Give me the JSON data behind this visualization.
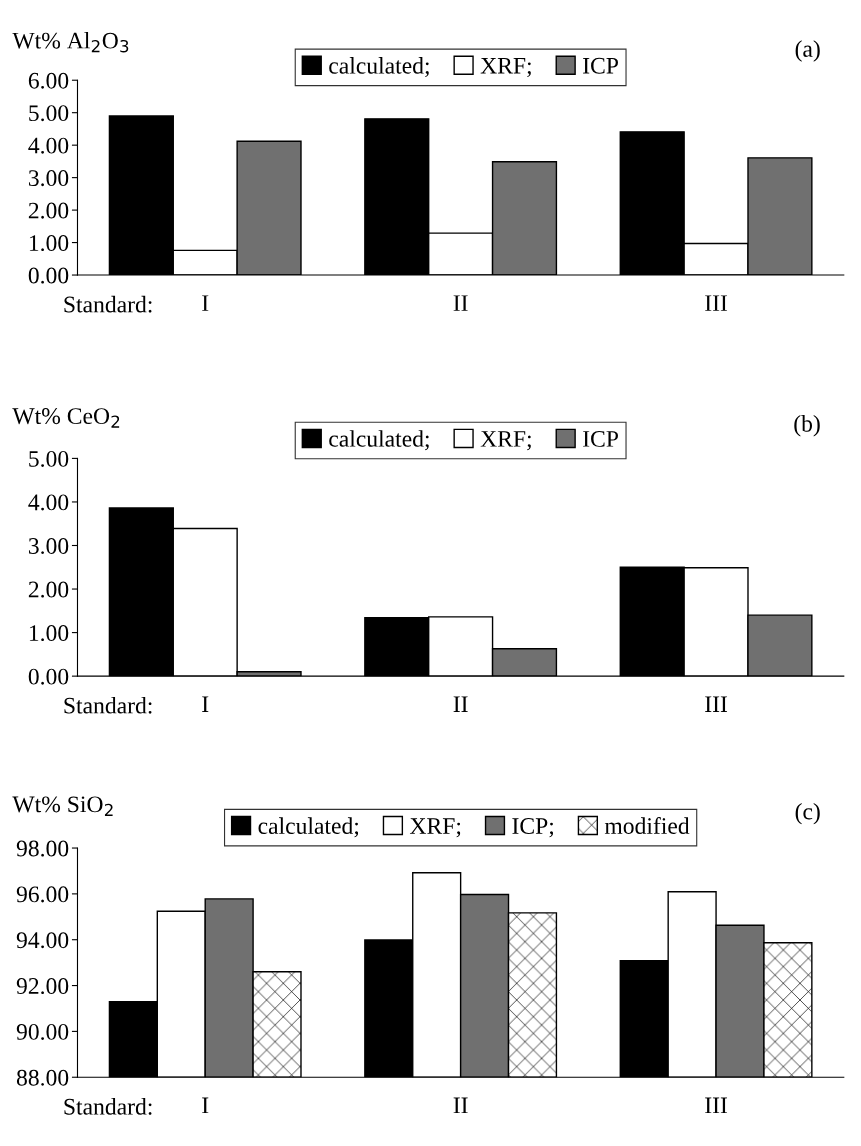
{
  "chart_data": [
    {
      "type": "bar",
      "title": "Wt% Al$_{2}$O$_{3}$",
      "xlabel": "Standard:",
      "annotations": [
        "(a)"
      ],
      "categories": [
        "I",
        "II",
        "III"
      ],
      "legend": "top",
      "series": [
        {
          "name": "calculated;",
          "color": "#000000",
          "values": [
            4.9,
            4.81,
            4.41
          ]
        },
        {
          "name": "XRF;",
          "color": "#ffffff",
          "values": [
            0.76,
            1.29,
            0.97
          ]
        },
        {
          "name": "ICP",
          "color": "#707070",
          "values": [
            4.12,
            3.49,
            3.61
          ]
        }
      ],
      "ylim": [
        0,
        6
      ],
      "yticks": [
        {
          "value": 0,
          "label": "0.00"
        },
        {
          "value": 1,
          "label": "1.00"
        },
        {
          "value": 2,
          "label": "2.00"
        },
        {
          "value": 3,
          "label": "3.00"
        },
        {
          "value": 4,
          "label": "4.00"
        },
        {
          "value": 5,
          "label": "5.00"
        },
        {
          "value": 6,
          "label": "6.00"
        }
      ]
    },
    {
      "type": "bar",
      "title": "Wt% CeO$_{2}$",
      "xlabel": "Standard:",
      "annotations": [
        "(b)"
      ],
      "categories": [
        "I",
        "II",
        "III"
      ],
      "legend": "top",
      "series": [
        {
          "name": "calculated;",
          "color": "#000000",
          "values": [
            3.86,
            1.34,
            2.5
          ]
        },
        {
          "name": "XRF;",
          "color": "#ffffff",
          "values": [
            3.39,
            1.36,
            2.49
          ]
        },
        {
          "name": "ICP",
          "color": "#707070",
          "values": [
            0.1,
            0.63,
            1.4
          ]
        }
      ],
      "ylim": [
        0,
        5
      ],
      "yticks": [
        {
          "value": 0,
          "label": "0.00"
        },
        {
          "value": 1,
          "label": "1.00"
        },
        {
          "value": 2,
          "label": "2.00"
        },
        {
          "value": 3,
          "label": "3.00"
        },
        {
          "value": 4,
          "label": "4.00"
        },
        {
          "value": 5,
          "label": "5.00"
        }
      ]
    },
    {
      "type": "bar",
      "title": "Wt% SiO$_{2}$",
      "xlabel": "Standard:",
      "annotations": [
        "(c)"
      ],
      "categories": [
        "I",
        "II",
        "III"
      ],
      "legend": "top",
      "series": [
        {
          "name": "calculated;",
          "color": "#000000",
          "values": [
            91.3,
            93.99,
            93.09
          ]
        },
        {
          "name": "XRF;",
          "color": "#ffffff",
          "values": [
            95.24,
            96.92,
            96.09
          ]
        },
        {
          "name": "ICP;",
          "color": "#707070",
          "values": [
            95.78,
            95.97,
            94.63
          ]
        },
        {
          "name": "modified",
          "color": "#000000",
          "values": [
            92.6,
            95.17,
            93.87
          ]
        }
      ],
      "ylim": [
        88,
        98
      ],
      "yticks": [
        {
          "value": 88,
          "label": "88.00"
        },
        {
          "value": 90,
          "label": "90.00"
        },
        {
          "value": 92,
          "label": "92.00"
        },
        {
          "value": 94,
          "label": "94.00"
        },
        {
          "value": 96,
          "label": "96.00"
        },
        {
          "value": 98,
          "label": "98.00"
        }
      ]
    }
  ]
}
